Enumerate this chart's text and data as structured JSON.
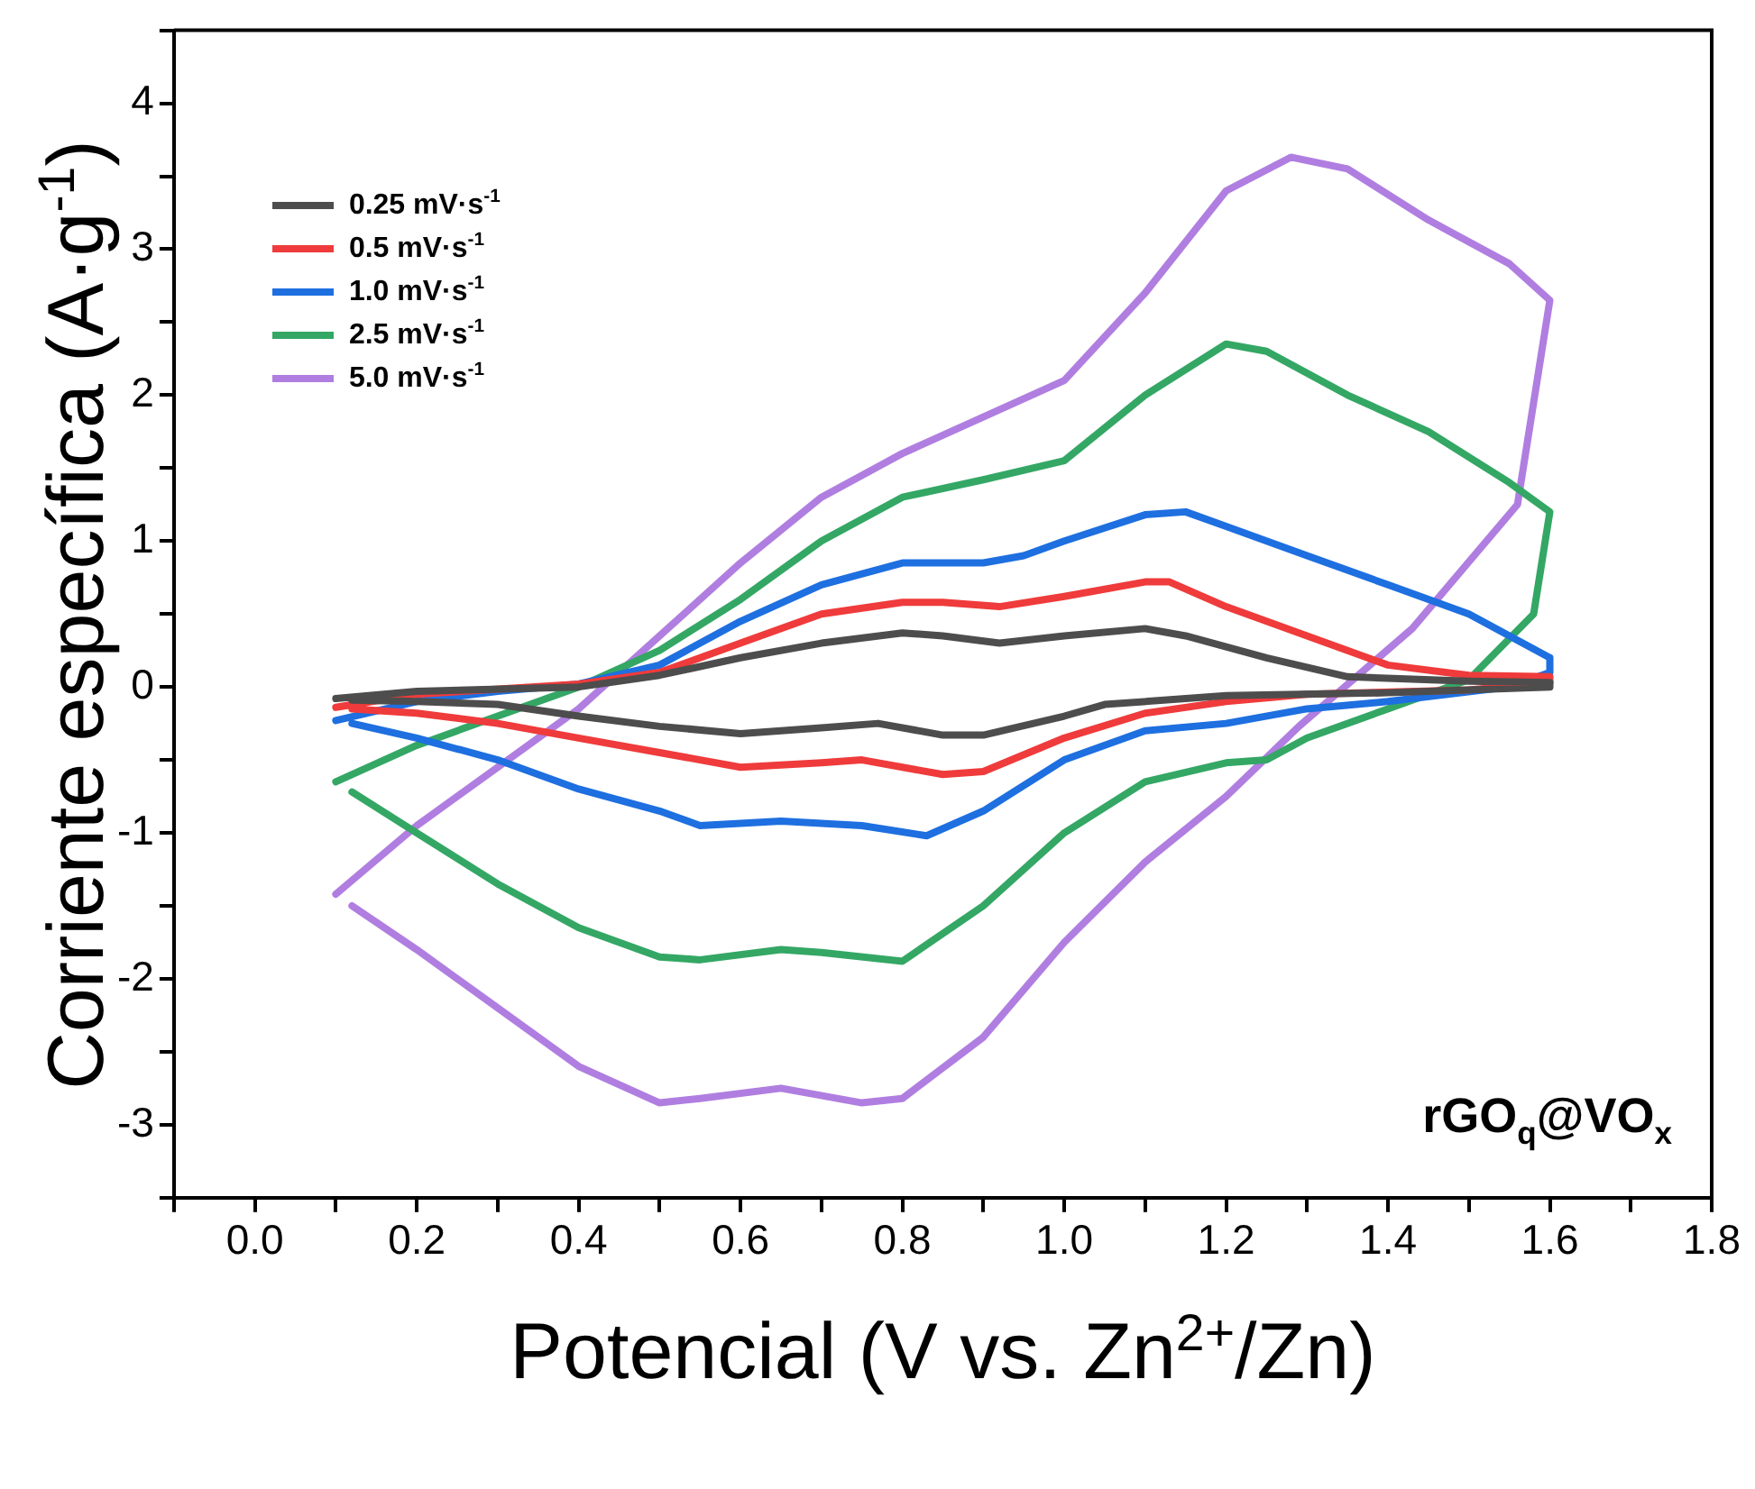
{
  "chart_data": {
    "type": "line",
    "xlabel": "Potencial (V vs. Zn$^{2+}$/Zn)",
    "ylabel": "Corriente específica (A·g$^{-1}$)",
    "annotations": [
      "rGO$_{q}$@VO$_{x}$"
    ],
    "xlim": [
      -0.1,
      1.8
    ],
    "ylim": [
      -3.5,
      4.5
    ],
    "xticks": [
      {
        "value": -0.1,
        "label": null
      },
      {
        "value": 0,
        "label": "0.0"
      },
      {
        "value": 0.1,
        "label": null
      },
      0.2,
      {
        "value": 0.3,
        "label": null
      },
      0.4,
      {
        "value": 0.5,
        "label": null
      },
      0.6,
      {
        "value": 0.7,
        "label": null
      },
      0.8,
      {
        "value": 0.9,
        "label": null
      },
      {
        "value": 1,
        "label": "1.0"
      },
      {
        "value": 1.1,
        "label": null
      },
      1.2,
      {
        "value": 1.3,
        "label": null
      },
      1.4,
      {
        "value": 1.5,
        "label": null
      },
      1.6,
      {
        "value": 1.7,
        "label": null
      },
      1.8
    ],
    "yticks": [
      {
        "value": -3.5,
        "label": null
      },
      -3,
      {
        "value": -2.5,
        "label": null
      },
      -2,
      {
        "value": -1.5,
        "label": null
      },
      -1,
      {
        "value": -0.5,
        "label": null
      },
      0,
      {
        "value": 0.5,
        "label": null
      },
      1,
      {
        "value": 1.5,
        "label": null
      },
      2,
      {
        "value": 2.5,
        "label": null
      },
      3,
      {
        "value": 3.5,
        "label": null
      },
      4,
      {
        "value": 4.5,
        "label": null
      }
    ],
    "grid": false,
    "legend": "top left",
    "marker": "none",
    "line_style": "solid",
    "series": [
      {
        "name": "0.25 mV·s$^{-1}$",
        "color": "#4d4d4d",
        "x": [
          0.1,
          0.2,
          0.4,
          0.5,
          0.6,
          0.7,
          0.8,
          0.85,
          0.92,
          1.0,
          1.1,
          1.15,
          1.25,
          1.35,
          1.5,
          1.6,
          1.6,
          1.4,
          1.2,
          1.05,
          1.0,
          0.9,
          0.85,
          0.77,
          0.7,
          0.6,
          0.5,
          0.4,
          0.3,
          0.2,
          0.12
        ],
        "values": [
          -0.08,
          -0.03,
          0.0,
          0.08,
          0.2,
          0.3,
          0.37,
          0.35,
          0.3,
          0.35,
          0.4,
          0.35,
          0.2,
          0.07,
          0.04,
          0.03,
          0.0,
          -0.04,
          -0.06,
          -0.12,
          -0.2,
          -0.33,
          -0.33,
          -0.25,
          -0.28,
          -0.32,
          -0.27,
          -0.2,
          -0.12,
          -0.1,
          -0.09
        ]
      },
      {
        "name": "0.5 mV·s$^{-1}$",
        "color": "#ef3b3b",
        "x": [
          0.1,
          0.2,
          0.4,
          0.5,
          0.6,
          0.7,
          0.8,
          0.85,
          0.92,
          1.0,
          1.1,
          1.13,
          1.2,
          1.3,
          1.4,
          1.5,
          1.6,
          1.6,
          1.5,
          1.3,
          1.2,
          1.1,
          1.0,
          0.9,
          0.85,
          0.75,
          0.7,
          0.6,
          0.5,
          0.4,
          0.3,
          0.2,
          0.12
        ],
        "values": [
          -0.14,
          -0.05,
          0.02,
          0.1,
          0.3,
          0.5,
          0.58,
          0.58,
          0.55,
          0.62,
          0.72,
          0.72,
          0.55,
          0.35,
          0.15,
          0.08,
          0.07,
          0.03,
          -0.02,
          -0.05,
          -0.1,
          -0.18,
          -0.35,
          -0.58,
          -0.6,
          -0.5,
          -0.52,
          -0.55,
          -0.45,
          -0.35,
          -0.25,
          -0.18,
          -0.15
        ]
      },
      {
        "name": "1.0 mV·s$^{-1}$",
        "color": "#1e6fe0",
        "x": [
          0.1,
          0.2,
          0.3,
          0.4,
          0.5,
          0.6,
          0.7,
          0.8,
          0.9,
          0.95,
          1.0,
          1.1,
          1.15,
          1.2,
          1.3,
          1.4,
          1.5,
          1.6,
          1.6,
          1.55,
          1.4,
          1.3,
          1.2,
          1.1,
          1.0,
          0.9,
          0.83,
          0.75,
          0.65,
          0.55,
          0.5,
          0.4,
          0.3,
          0.2,
          0.12
        ],
        "values": [
          -0.23,
          -0.1,
          -0.03,
          0.02,
          0.15,
          0.45,
          0.7,
          0.85,
          0.85,
          0.9,
          1.0,
          1.18,
          1.2,
          1.1,
          0.9,
          0.7,
          0.5,
          0.2,
          0.1,
          0.0,
          -0.1,
          -0.15,
          -0.25,
          -0.3,
          -0.5,
          -0.85,
          -1.02,
          -0.95,
          -0.92,
          -0.95,
          -0.85,
          -0.7,
          -0.5,
          -0.35,
          -0.25
        ]
      },
      {
        "name": "2.5 mV·s$^{-1}$",
        "color": "#34a765",
        "x": [
          0.1,
          0.2,
          0.3,
          0.4,
          0.5,
          0.6,
          0.7,
          0.8,
          0.9,
          1.0,
          1.1,
          1.2,
          1.25,
          1.35,
          1.45,
          1.55,
          1.6,
          1.58,
          1.5,
          1.4,
          1.3,
          1.25,
          1.2,
          1.1,
          1.0,
          0.9,
          0.8,
          0.7,
          0.65,
          0.55,
          0.5,
          0.4,
          0.3,
          0.2,
          0.12
        ],
        "values": [
          -0.65,
          -0.4,
          -0.2,
          0.0,
          0.25,
          0.6,
          1.0,
          1.3,
          1.42,
          1.55,
          2.0,
          2.35,
          2.3,
          2.0,
          1.75,
          1.4,
          1.2,
          0.5,
          0.05,
          -0.15,
          -0.35,
          -0.5,
          -0.52,
          -0.65,
          -1.0,
          -1.5,
          -1.88,
          -1.82,
          -1.8,
          -1.87,
          -1.85,
          -1.65,
          -1.35,
          -1.0,
          -0.72
        ]
      },
      {
        "name": "5.0 mV·s$^{-1}$",
        "color": "#b07ee0",
        "x": [
          0.1,
          0.2,
          0.3,
          0.4,
          0.5,
          0.6,
          0.7,
          0.8,
          0.9,
          1.0,
          1.1,
          1.2,
          1.28,
          1.35,
          1.45,
          1.55,
          1.6,
          1.56,
          1.43,
          1.29,
          1.2,
          1.1,
          1.0,
          0.9,
          0.8,
          0.75,
          0.65,
          0.55,
          0.5,
          0.4,
          0.3,
          0.2,
          0.12
        ],
        "values": [
          -1.42,
          -0.95,
          -0.55,
          -0.15,
          0.35,
          0.85,
          1.3,
          1.6,
          1.85,
          2.1,
          2.7,
          3.4,
          3.63,
          3.55,
          3.2,
          2.9,
          2.65,
          1.25,
          0.4,
          -0.27,
          -0.75,
          -1.2,
          -1.75,
          -2.4,
          -2.82,
          -2.85,
          -2.75,
          -2.82,
          -2.85,
          -2.6,
          -2.2,
          -1.8,
          -1.5
        ]
      }
    ]
  }
}
